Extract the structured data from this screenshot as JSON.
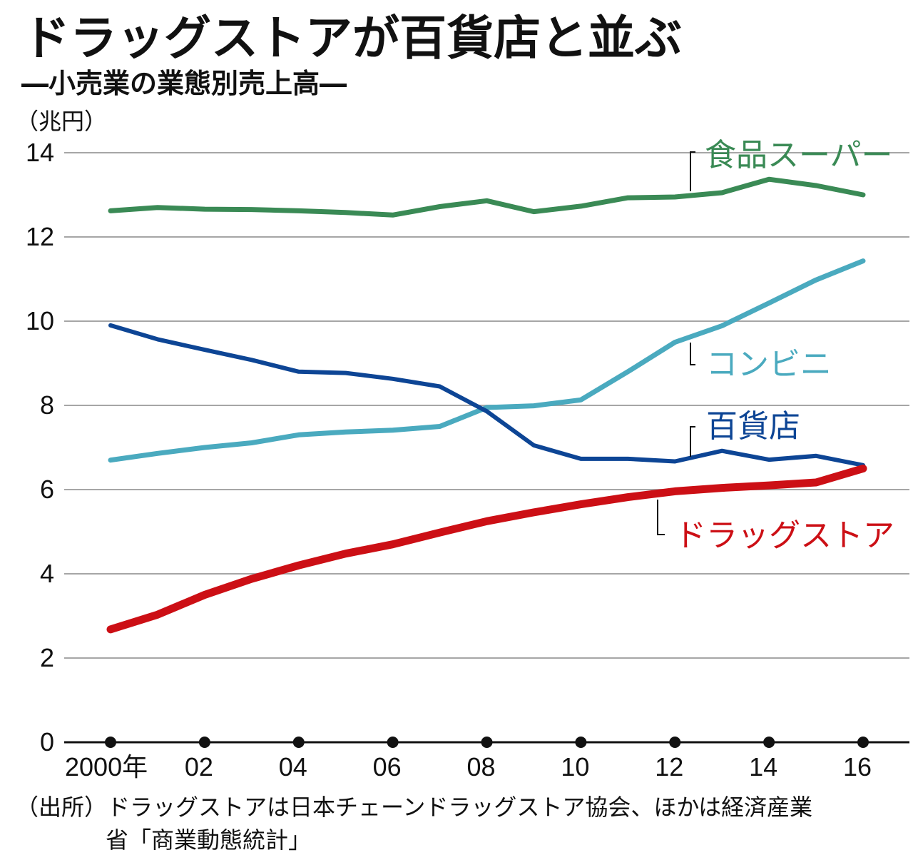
{
  "chart_data": {
    "type": "line",
    "title": "ドラッグストアが百貨店と並ぶ",
    "subtitle": "―小売業の業態別売上高―",
    "unit_label": "（兆円）",
    "source_line1": "（出所）ドラッグストアは日本チェーンドラッグストア協会、ほかは経済産業",
    "source_line2": "省「商業動態統計」",
    "x": [
      2000,
      2001,
      2002,
      2003,
      2004,
      2005,
      2006,
      2007,
      2008,
      2009,
      2010,
      2011,
      2012,
      2013,
      2014,
      2015,
      2016
    ],
    "x_tick_labels": [
      {
        "x": 2000,
        "label": "2000年"
      },
      {
        "x": 2002,
        "label": "02"
      },
      {
        "x": 2004,
        "label": "04"
      },
      {
        "x": 2006,
        "label": "06"
      },
      {
        "x": 2008,
        "label": "08"
      },
      {
        "x": 2010,
        "label": "10"
      },
      {
        "x": 2012,
        "label": "12"
      },
      {
        "x": 2014,
        "label": "14"
      },
      {
        "x": 2016,
        "label": "16"
      }
    ],
    "y_ticks": [
      "0",
      "2",
      "4",
      "6",
      "8",
      "10",
      "12",
      "14"
    ],
    "ylim": [
      0,
      14
    ],
    "grid": true,
    "series": [
      {
        "name": "食品スーパー",
        "color": "#3a8a55",
        "values": [
          12.62,
          12.7,
          12.66,
          12.65,
          12.62,
          12.58,
          12.52,
          12.72,
          12.86,
          12.6,
          12.73,
          12.93,
          12.95,
          13.05,
          13.37,
          13.22,
          13.0
        ]
      },
      {
        "name": "コンビニ",
        "color": "#4aaabf",
        "values": [
          6.7,
          6.86,
          7.0,
          7.11,
          7.3,
          7.37,
          7.41,
          7.5,
          7.95,
          7.99,
          8.13,
          8.8,
          9.5,
          9.89,
          10.43,
          10.98,
          11.43
        ]
      },
      {
        "name": "百貨店",
        "color": "#0d4595",
        "values": [
          9.9,
          9.57,
          9.32,
          9.08,
          8.8,
          8.77,
          8.63,
          8.45,
          7.86,
          7.05,
          6.73,
          6.73,
          6.67,
          6.92,
          6.71,
          6.8,
          6.58
        ]
      },
      {
        "name": "ドラッグストア",
        "color": "#cc0f15",
        "values": [
          2.68,
          3.03,
          3.5,
          3.88,
          4.2,
          4.48,
          4.7,
          4.98,
          5.25,
          5.46,
          5.65,
          5.82,
          5.96,
          6.04,
          6.1,
          6.17,
          6.5
        ]
      }
    ]
  }
}
